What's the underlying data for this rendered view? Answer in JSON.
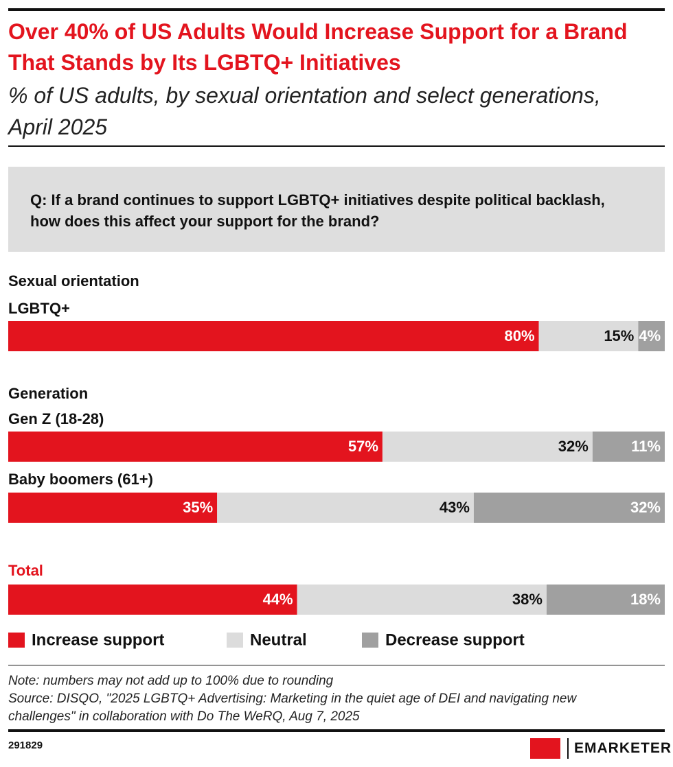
{
  "chart_data": {
    "type": "stacked-bar",
    "title": "Over 40% of US Adults Would Increase Support for a Brand That Stands by Its LGBTQ+ Initiatives",
    "subtitle": "% of US adults, by sexual orientation and select generations, April 2025",
    "question": "Q: If a brand continues to support LGBTQ+ initiatives despite political backlash, how does this affect your support for the brand?",
    "groups": [
      {
        "name": "Sexual orientation",
        "categories": [
          "LGBTQ+"
        ]
      },
      {
        "name": "Generation",
        "categories": [
          "Gen Z (18-28)",
          "Baby boomers (61+)"
        ]
      },
      {
        "categories": [
          "Total"
        ]
      }
    ],
    "series": [
      {
        "name": "Increase support",
        "color": "#e3141e",
        "label_color": "#ffffff",
        "values": [
          80,
          57,
          35,
          44
        ],
        "value_labels": [
          "80%",
          "57%",
          "35%",
          "44%"
        ]
      },
      {
        "name": "Neutral",
        "color": "#dcdcdc",
        "label_color": "#111111",
        "values": [
          15,
          32,
          43,
          38
        ],
        "value_labels": [
          "15%",
          "32%",
          "43%",
          "38%"
        ]
      },
      {
        "name": "Decrease support",
        "color": "#a0a0a0",
        "label_color": "#ffffff",
        "values": [
          4,
          11,
          32,
          18
        ],
        "value_labels": [
          "4%",
          "11%",
          "32%",
          "18%"
        ]
      }
    ],
    "note": "Note: numbers may not add up to 100% due to rounding",
    "source": "Source: DISQO, \"2025 LGBTQ+ Advertising: Marketing in the quiet age of DEI and navigating new challenges\" in collaboration with Do The WeRQ, Aug 7, 2025",
    "chart_id": "291829",
    "brand": "EMARKETER"
  }
}
